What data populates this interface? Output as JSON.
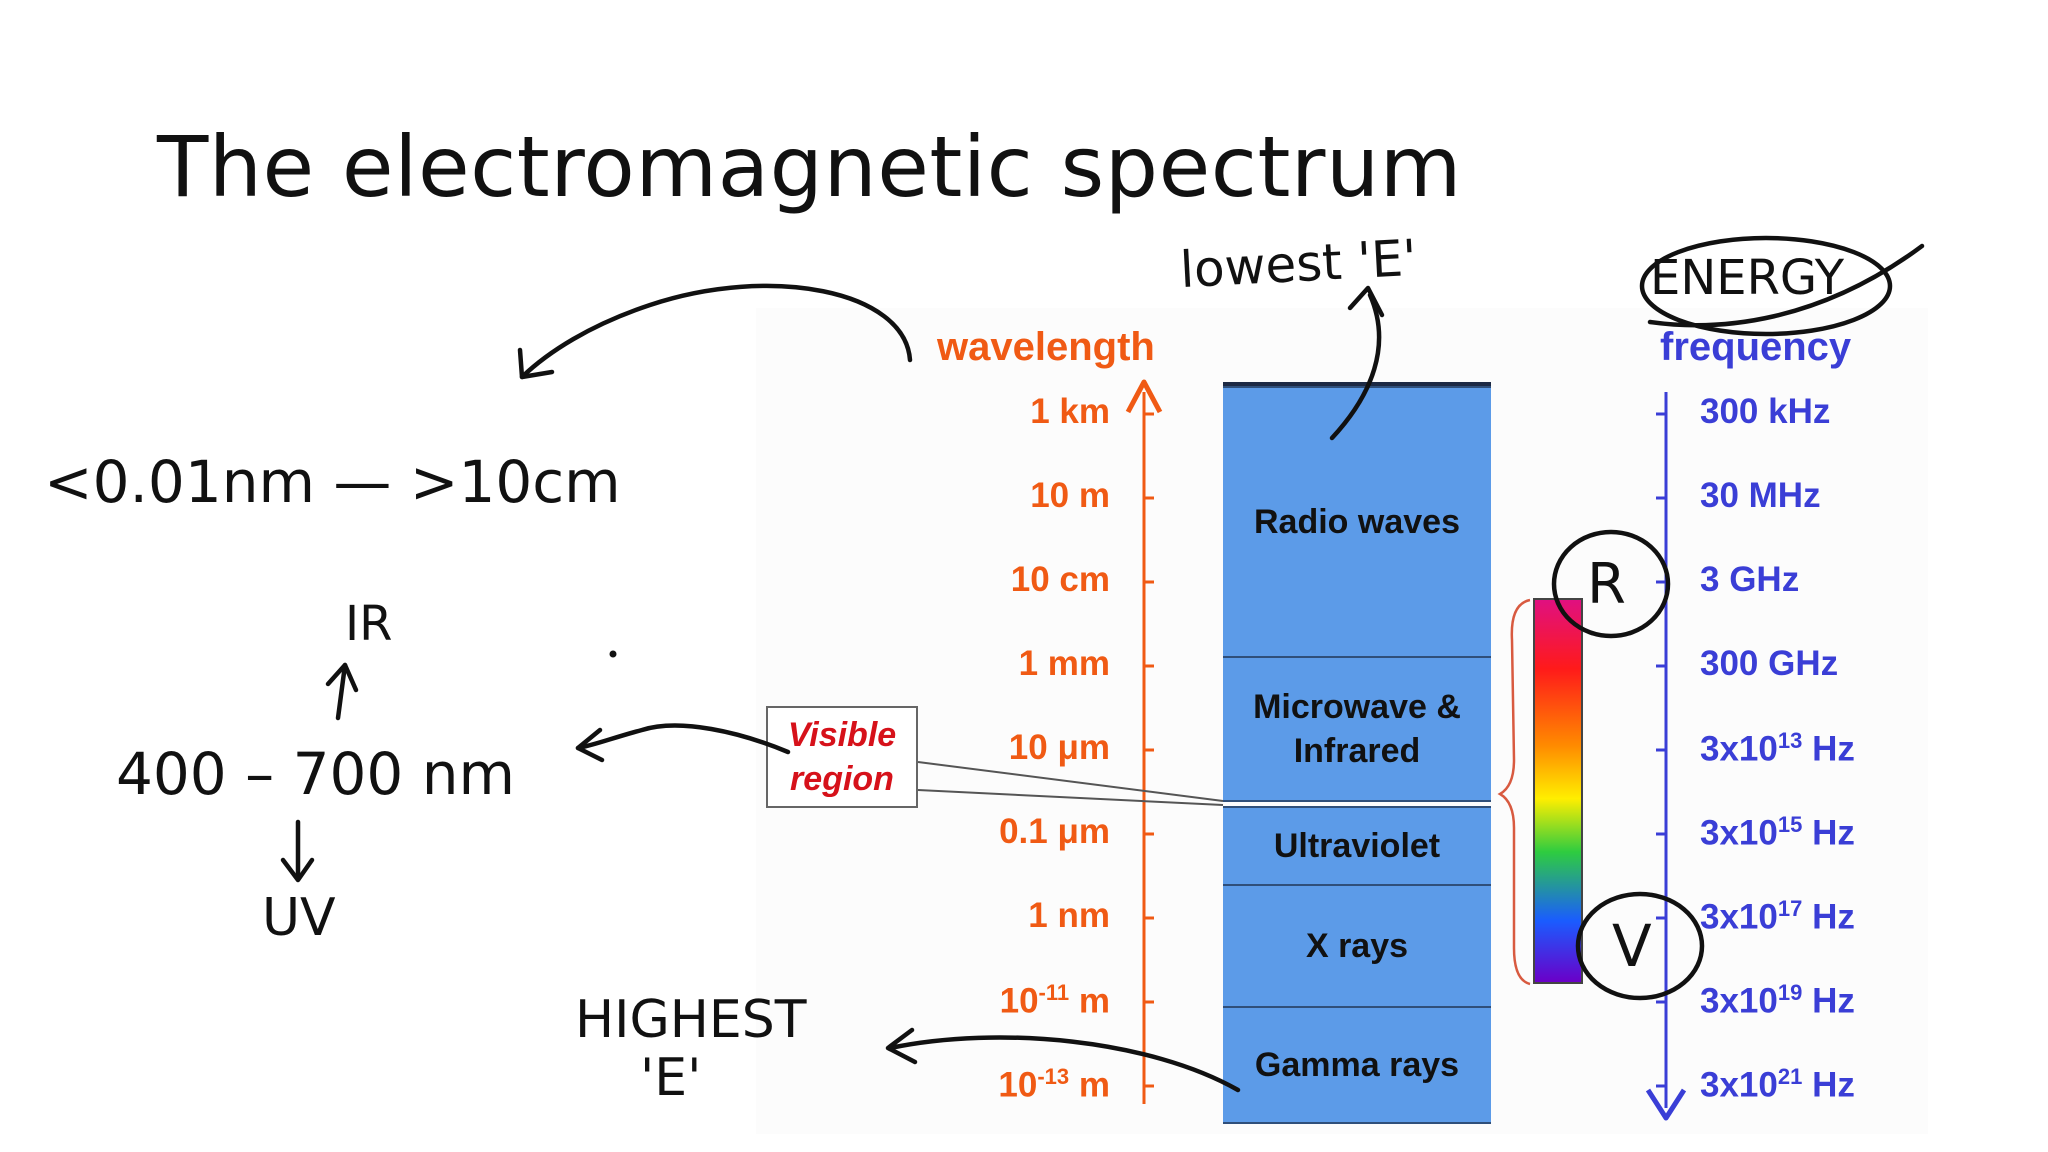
{
  "slide": {
    "title": "The electromagnetic spectrum"
  },
  "diagram": {
    "wavelength_header": "wavelength",
    "frequency_header": "frequency",
    "wavelength_ticks": [
      {
        "label": "1 km"
      },
      {
        "label": "10 m"
      },
      {
        "label": "10 cm"
      },
      {
        "label": "1 mm"
      },
      {
        "label": "10 μm"
      },
      {
        "label": "0.1 μm"
      },
      {
        "label": "1 nm"
      },
      {
        "base": "10",
        "exp": "-11",
        "unit": " m"
      },
      {
        "base": "10",
        "exp": "-13",
        "unit": " m"
      }
    ],
    "frequency_ticks": [
      {
        "label": "300 kHz"
      },
      {
        "label": "30 MHz"
      },
      {
        "label": "3 GHz"
      },
      {
        "label": "300 GHz"
      },
      {
        "base": "3x10",
        "exp": "13",
        "unit": " Hz"
      },
      {
        "base": "3x10",
        "exp": "15",
        "unit": " Hz"
      },
      {
        "base": "3x10",
        "exp": "17",
        "unit": " Hz"
      },
      {
        "base": "3x10",
        "exp": "19",
        "unit": " Hz"
      },
      {
        "base": "3x10",
        "exp": "21",
        "unit": " Hz"
      }
    ],
    "bands": [
      {
        "name": "Radio waves"
      },
      {
        "name": "Microwave &\nInfrared"
      },
      {
        "name": "Ultraviolet"
      },
      {
        "name": "X rays"
      },
      {
        "name": "Gamma rays"
      }
    ],
    "visible_region_label": "Visible\nregion",
    "colors": {
      "wavelength": "#f05a14",
      "frequency": "#3a3ed6",
      "band_fill": "#5c9be8",
      "visible_label": "#d6111a"
    }
  },
  "annotations": {
    "lowest_energy": "lowest 'E'",
    "energy": "ENERGY",
    "range": "<0.01nm — >10cm",
    "ir": "IR",
    "visible_range": "400 – 700 nm",
    "uv": "UV",
    "highest_energy_line1": "HIGHEST",
    "highest_energy_line2": "'E'",
    "red_marker": "R",
    "violet_marker": "V"
  }
}
